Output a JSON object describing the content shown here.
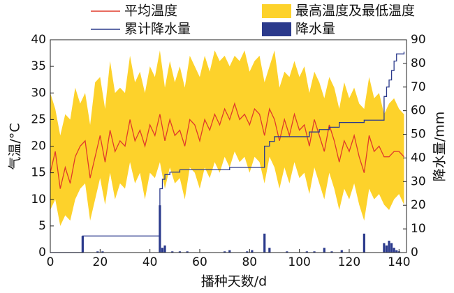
{
  "chart_data": {
    "type": "line",
    "xlabel": "播种天数/d",
    "ylabel": "气温/°C",
    "y2label": "降水量/mm",
    "xlim": [
      0,
      143
    ],
    "ylim": [
      0,
      40
    ],
    "y2lim": [
      0,
      90
    ],
    "xticks": [
      0,
      20,
      40,
      60,
      80,
      100,
      120,
      140
    ],
    "yticks": [
      0,
      5,
      10,
      15,
      20,
      25,
      30,
      35,
      40
    ],
    "y2ticks": [
      0,
      10,
      20,
      30,
      40,
      50,
      60,
      70,
      80,
      90
    ],
    "x": [
      0,
      2,
      4,
      6,
      8,
      10,
      12,
      14,
      16,
      18,
      20,
      22,
      24,
      26,
      28,
      30,
      32,
      34,
      36,
      38,
      40,
      42,
      44,
      46,
      48,
      50,
      52,
      54,
      56,
      58,
      60,
      62,
      64,
      66,
      68,
      70,
      72,
      74,
      76,
      78,
      80,
      82,
      84,
      86,
      88,
      90,
      92,
      94,
      96,
      98,
      100,
      102,
      104,
      106,
      108,
      110,
      112,
      114,
      116,
      118,
      120,
      122,
      124,
      126,
      128,
      130,
      132,
      134,
      136,
      138,
      140,
      142
    ],
    "series": [
      {
        "name": "平均温度",
        "type": "line",
        "color": "#e03a2a",
        "values": [
          15,
          19,
          12,
          16,
          13,
          18,
          20,
          21,
          14,
          18,
          22,
          17,
          23,
          19,
          21,
          20,
          25,
          21,
          23,
          20,
          24,
          22,
          26,
          21,
          25,
          22,
          23,
          20,
          25,
          24,
          21,
          25,
          23,
          26,
          24,
          27,
          25,
          28,
          25,
          26,
          24,
          27,
          26,
          22,
          27,
          25,
          21,
          25,
          22,
          26,
          23,
          24,
          20,
          25,
          22,
          19,
          24,
          21,
          17,
          21,
          19,
          22,
          18,
          15,
          22,
          19,
          20,
          18,
          18,
          19,
          19,
          18
        ]
      },
      {
        "name": "最高温度及最低温度",
        "type": "band",
        "color": "#fdd22b",
        "high": [
          30,
          27,
          22,
          26,
          25,
          31,
          28,
          30,
          24,
          32,
          33,
          27,
          36,
          30,
          31,
          30,
          37,
          32,
          34,
          30,
          35,
          33,
          38,
          31,
          36,
          32,
          35,
          31,
          37,
          35,
          33,
          37,
          34,
          38,
          36,
          37,
          35,
          37,
          36,
          38,
          34,
          36,
          37,
          32,
          35,
          38,
          31,
          34,
          33,
          36,
          33,
          35,
          30,
          34,
          32,
          29,
          33,
          31,
          27,
          32,
          29,
          31,
          28,
          27,
          33,
          29,
          30,
          26,
          28,
          29,
          27,
          26
        ],
        "low": [
          8,
          10,
          5,
          7,
          6,
          10,
          12,
          13,
          6,
          10,
          14,
          9,
          15,
          10,
          13,
          12,
          17,
          13,
          15,
          10,
          15,
          14,
          17,
          12,
          16,
          13,
          14,
          10,
          16,
          15,
          12,
          16,
          14,
          17,
          15,
          18,
          16,
          19,
          17,
          18,
          15,
          18,
          17,
          13,
          18,
          16,
          12,
          16,
          13,
          17,
          14,
          15,
          11,
          16,
          13,
          10,
          15,
          12,
          8,
          12,
          10,
          13,
          9,
          6,
          12,
          10,
          11,
          9,
          8,
          10,
          11,
          9
        ]
      },
      {
        "name": "累计降水量",
        "type": "step",
        "color": "#2b3a8c",
        "axis": "y2",
        "x": [
          0,
          13,
          44,
          45,
          46,
          48,
          52,
          72,
          86,
          88,
          90,
          104,
          108,
          112,
          116,
          126,
          134,
          135,
          136,
          137,
          138,
          139,
          142
        ],
        "values": [
          0,
          7,
          27,
          31,
          33,
          34,
          35,
          36,
          45,
          47,
          49,
          51,
          52,
          53,
          55,
          56,
          66,
          70,
          73,
          77,
          81,
          84,
          85
        ]
      },
      {
        "name": "降水量",
        "type": "bar",
        "color": "#2b3a8c",
        "axis": "y2",
        "x": [
          13,
          19,
          21,
          44,
          45,
          46,
          49,
          52,
          55,
          70,
          72,
          79,
          81,
          86,
          88,
          95,
          103,
          106,
          110,
          113,
          117,
          126,
          134,
          135,
          136,
          137,
          138,
          139,
          140
        ],
        "values": [
          7,
          0.5,
          0.5,
          20,
          2,
          3,
          0.5,
          0.5,
          0.5,
          0.5,
          1,
          0.5,
          1,
          8,
          2,
          0.5,
          0.5,
          0.5,
          2,
          0.5,
          1,
          8,
          4,
          3,
          5,
          4,
          2,
          1,
          0.5
        ]
      }
    ]
  }
}
